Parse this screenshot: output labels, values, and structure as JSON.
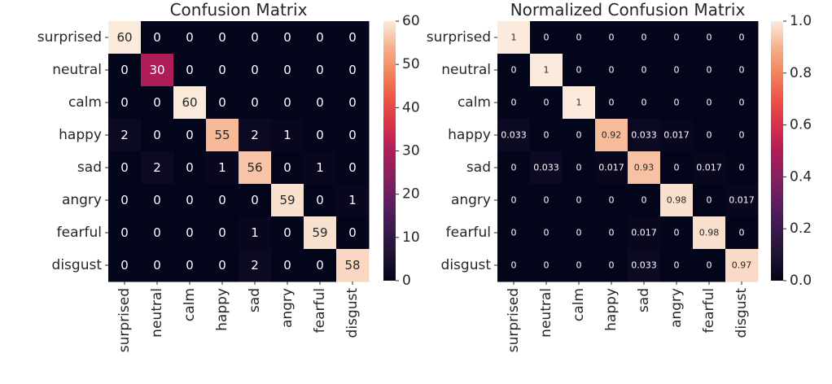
{
  "chart_data": [
    {
      "type": "heatmap",
      "title": "Confusion Matrix",
      "row_labels": [
        "surprised",
        "neutral",
        "calm",
        "happy",
        "sad",
        "angry",
        "fearful",
        "disgust"
      ],
      "col_labels": [
        "surprised",
        "neutral",
        "calm",
        "happy",
        "sad",
        "angry",
        "fearful",
        "disgust"
      ],
      "values": [
        [
          60,
          0,
          0,
          0,
          0,
          0,
          0,
          0
        ],
        [
          0,
          30,
          0,
          0,
          0,
          0,
          0,
          0
        ],
        [
          0,
          0,
          60,
          0,
          0,
          0,
          0,
          0
        ],
        [
          2,
          0,
          0,
          55,
          2,
          1,
          0,
          0
        ],
        [
          0,
          2,
          0,
          1,
          56,
          0,
          1,
          0
        ],
        [
          0,
          0,
          0,
          0,
          0,
          59,
          0,
          1
        ],
        [
          0,
          0,
          0,
          0,
          1,
          0,
          59,
          0
        ],
        [
          0,
          0,
          0,
          0,
          2,
          0,
          0,
          58
        ]
      ],
      "annotations": [
        [
          "60",
          "0",
          "0",
          "0",
          "0",
          "0",
          "0",
          "0"
        ],
        [
          "0",
          "30",
          "0",
          "0",
          "0",
          "0",
          "0",
          "0"
        ],
        [
          "0",
          "0",
          "60",
          "0",
          "0",
          "0",
          "0",
          "0"
        ],
        [
          "2",
          "0",
          "0",
          "55",
          "2",
          "1",
          "0",
          "0"
        ],
        [
          "0",
          "2",
          "0",
          "1",
          "56",
          "0",
          "1",
          "0"
        ],
        [
          "0",
          "0",
          "0",
          "0",
          "0",
          "59",
          "0",
          "1"
        ],
        [
          "0",
          "0",
          "0",
          "0",
          "1",
          "0",
          "59",
          "0"
        ],
        [
          "0",
          "0",
          "0",
          "0",
          "2",
          "0",
          "0",
          "58"
        ]
      ],
      "colorbar": {
        "min": 0,
        "max": 60,
        "ticks": [
          "0",
          "10",
          "20",
          "30",
          "40",
          "50",
          "60"
        ],
        "tick_values": [
          0,
          10,
          20,
          30,
          40,
          50,
          60
        ]
      },
      "colormap": "rocket"
    },
    {
      "type": "heatmap",
      "title": "Normalized Confusion Matrix",
      "row_labels": [
        "surprised",
        "neutral",
        "calm",
        "happy",
        "sad",
        "angry",
        "fearful",
        "disgust"
      ],
      "col_labels": [
        "surprised",
        "neutral",
        "calm",
        "happy",
        "sad",
        "angry",
        "fearful",
        "disgust"
      ],
      "values": [
        [
          1,
          0,
          0,
          0,
          0,
          0,
          0,
          0
        ],
        [
          0,
          1,
          0,
          0,
          0,
          0,
          0,
          0
        ],
        [
          0,
          0,
          1,
          0,
          0,
          0,
          0,
          0
        ],
        [
          0.033,
          0,
          0,
          0.92,
          0.033,
          0.017,
          0,
          0
        ],
        [
          0,
          0.033,
          0,
          0.017,
          0.93,
          0,
          0.017,
          0
        ],
        [
          0,
          0,
          0,
          0,
          0,
          0.98,
          0,
          0.017
        ],
        [
          0,
          0,
          0,
          0,
          0.017,
          0,
          0.98,
          0
        ],
        [
          0,
          0,
          0,
          0,
          0.033,
          0,
          0,
          0.97
        ]
      ],
      "annotations": [
        [
          "1",
          "0",
          "0",
          "0",
          "0",
          "0",
          "0",
          "0"
        ],
        [
          "0",
          "1",
          "0",
          "0",
          "0",
          "0",
          "0",
          "0"
        ],
        [
          "0",
          "0",
          "1",
          "0",
          "0",
          "0",
          "0",
          "0"
        ],
        [
          "0.033",
          "0",
          "0",
          "0.92",
          "0.033",
          "0.017",
          "0",
          "0"
        ],
        [
          "0",
          "0.033",
          "0",
          "0.017",
          "0.93",
          "0",
          "0.017",
          "0"
        ],
        [
          "0",
          "0",
          "0",
          "0",
          "0",
          "0.98",
          "0",
          "0.017"
        ],
        [
          "0",
          "0",
          "0",
          "0",
          "0.017",
          "0",
          "0.98",
          "0"
        ],
        [
          "0",
          "0",
          "0",
          "0",
          "0.033",
          "0",
          "0",
          "0.97"
        ]
      ],
      "colorbar": {
        "min": 0,
        "max": 1,
        "ticks": [
          "0.0",
          "0.2",
          "0.4",
          "0.6",
          "0.8",
          "1.0"
        ],
        "tick_values": [
          0,
          0.2,
          0.4,
          0.6,
          0.8,
          1.0
        ]
      },
      "colormap": "rocket"
    }
  ]
}
